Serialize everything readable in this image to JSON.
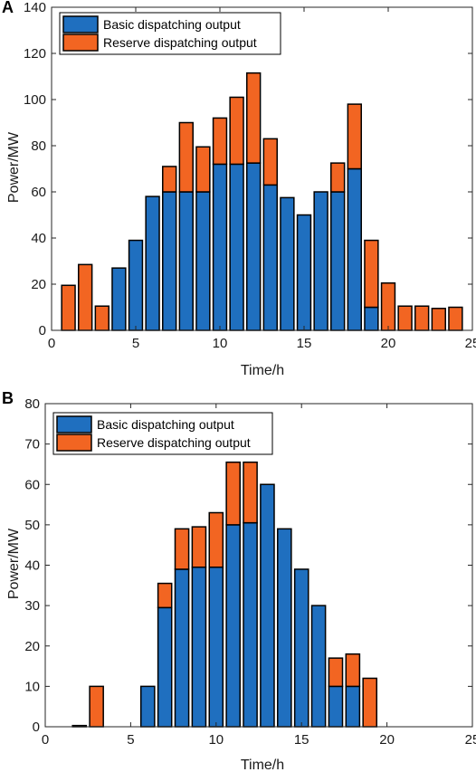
{
  "colors": {
    "basic": "#1f6fbf",
    "reserve": "#f26522",
    "outline": "#000000"
  },
  "chart_data": [
    {
      "panel": "A",
      "type": "bar",
      "stacked": true,
      "xlabel": "Time/h",
      "ylabel": "Power/MW",
      "xlim": [
        0,
        25
      ],
      "ylim": [
        0,
        140
      ],
      "xticks": [
        0,
        5,
        10,
        15,
        20,
        25
      ],
      "yticks": [
        0,
        20,
        40,
        60,
        80,
        100,
        120,
        140
      ],
      "legend_position": "top-left",
      "grid": false,
      "x": [
        1,
        2,
        3,
        4,
        5,
        6,
        7,
        8,
        9,
        10,
        11,
        12,
        13,
        14,
        15,
        16,
        17,
        18,
        19,
        20,
        21,
        22,
        23,
        24
      ],
      "series": [
        {
          "name": "Basic dispatching output",
          "color_key": "basic",
          "values": [
            0,
            0,
            0,
            27,
            39,
            58,
            60,
            60,
            60,
            72,
            72,
            72.5,
            63,
            57.5,
            50,
            60,
            60,
            70,
            10,
            0,
            0,
            0,
            0,
            0
          ]
        },
        {
          "name": "Reserve dispatching output",
          "color_key": "reserve",
          "values": [
            19.5,
            28.5,
            10.5,
            0,
            0,
            0,
            11,
            30,
            19.5,
            20,
            29,
            39,
            20,
            0,
            0,
            0,
            12.5,
            28,
            29,
            20.5,
            10.5,
            10.5,
            9.5,
            10
          ]
        }
      ]
    },
    {
      "panel": "B",
      "type": "bar",
      "stacked": true,
      "xlabel": "Time/h",
      "ylabel": "Power/MW",
      "xlim": [
        0,
        25
      ],
      "ylim": [
        0,
        80
      ],
      "xticks": [
        0,
        5,
        10,
        15,
        20,
        25
      ],
      "yticks": [
        0,
        10,
        20,
        30,
        40,
        50,
        60,
        70,
        80
      ],
      "legend_position": "top-left",
      "grid": false,
      "x": [
        1,
        2,
        3,
        4,
        5,
        6,
        7,
        8,
        9,
        10,
        11,
        12,
        13,
        14,
        15,
        16,
        17,
        18,
        19,
        20,
        21,
        22,
        23,
        24
      ],
      "series": [
        {
          "name": "Basic dispatching output",
          "color_key": "basic",
          "values": [
            0,
            0.3,
            0,
            0,
            0,
            10,
            29.5,
            39,
            39.5,
            39.5,
            50,
            50.5,
            60,
            49,
            39,
            30,
            10,
            10,
            0,
            0,
            0,
            0,
            0,
            0
          ]
        },
        {
          "name": "Reserve dispatching output",
          "color_key": "reserve",
          "values": [
            0,
            0,
            10,
            0,
            0,
            0,
            6,
            10,
            10,
            13.5,
            15.5,
            15,
            0,
            0,
            0,
            0,
            7,
            8,
            12,
            0,
            0,
            0,
            0,
            0
          ]
        }
      ]
    }
  ]
}
